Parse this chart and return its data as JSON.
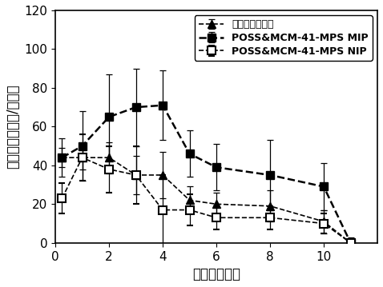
{
  "title": "",
  "xlabel": "时间（小时）",
  "ylabel": "血药浓度（纳克/毫升）",
  "xlim": [
    0,
    12
  ],
  "ylim": [
    0,
    120
  ],
  "xticks": [
    0,
    2,
    4,
    6,
    8,
    10
  ],
  "yticks": [
    0,
    20,
    40,
    60,
    80,
    100,
    120
  ],
  "series1_label": "卡培他滨商品药",
  "series1_x": [
    0.25,
    1,
    2,
    3,
    4,
    5,
    6,
    8,
    10,
    11
  ],
  "series1_y": [
    44,
    44,
    44,
    35,
    35,
    22,
    20,
    19,
    11,
    0
  ],
  "series1_yerr": [
    5,
    6,
    8,
    10,
    12,
    7,
    6,
    8,
    6,
    2
  ],
  "series2_label": "POSS&MCM-41-MPS MIP",
  "series2_x": [
    0.25,
    1,
    2,
    3,
    4,
    5,
    6,
    8,
    10,
    11
  ],
  "series2_y": [
    44,
    50,
    65,
    70,
    71,
    46,
    39,
    35,
    29,
    0
  ],
  "series2_yerr": [
    10,
    18,
    22,
    20,
    18,
    12,
    12,
    18,
    12,
    3
  ],
  "series3_label": "POSS&MCM-41-MPS NIP",
  "series3_x": [
    0.25,
    1,
    2,
    3,
    4,
    5,
    6,
    8,
    10,
    11
  ],
  "series3_y": [
    23,
    44,
    38,
    35,
    17,
    17,
    13,
    13,
    10,
    0
  ],
  "series3_yerr": [
    8,
    12,
    12,
    15,
    18,
    8,
    6,
    6,
    5,
    2
  ],
  "background_color": "#ffffff",
  "legend_fontsize": 9,
  "axis_label_fontsize": 12,
  "tick_fontsize": 11
}
